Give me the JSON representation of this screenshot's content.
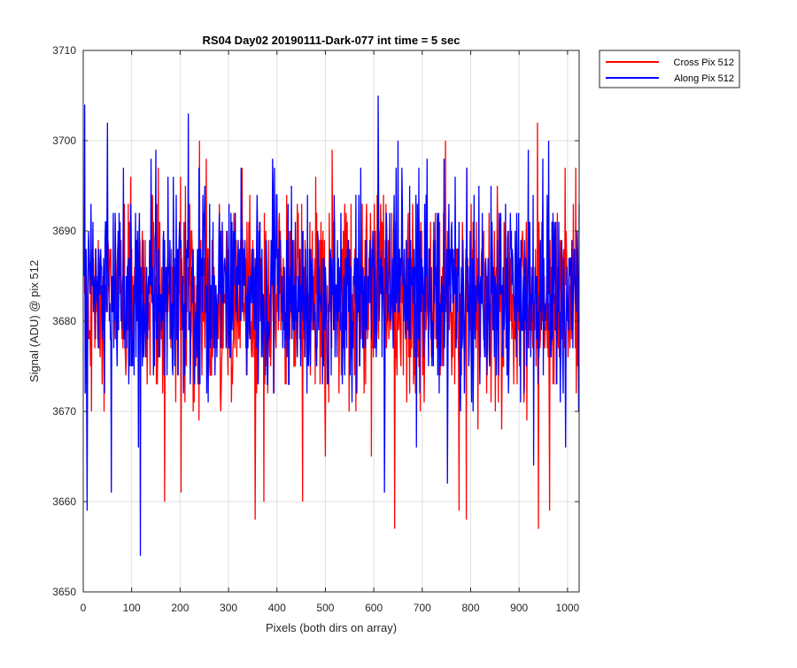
{
  "chart_data": {
    "type": "line",
    "title": "RS04 Day02 20190111-Dark-077 int time = 5 sec",
    "xlabel": "Pixels (both dirs on array)",
    "ylabel": "Signal (ADU) @ pix 512",
    "xlim": [
      0,
      1024
    ],
    "ylim": [
      3650,
      3710
    ],
    "xticks": [
      0,
      100,
      200,
      300,
      400,
      500,
      600,
      700,
      800,
      900,
      1000
    ],
    "yticks": [
      3650,
      3660,
      3670,
      3680,
      3690,
      3700,
      3710
    ],
    "grid": true,
    "legend": "outside-top-right",
    "series": [
      {
        "name": "Cross Pix 512",
        "color": "#ff0000",
        "mean": 3682,
        "spread": 5.5,
        "min": 3657,
        "max": 3702,
        "extremes": [
          [
            155,
            3697
          ],
          [
            168,
            3660
          ],
          [
            202,
            3661
          ],
          [
            240,
            3700
          ],
          [
            254,
            3698
          ],
          [
            355,
            3658
          ],
          [
            373,
            3660
          ],
          [
            442,
            3693
          ],
          [
            643,
            3657
          ],
          [
            776,
            3659
          ],
          [
            791,
            3658
          ],
          [
            855,
            3695
          ],
          [
            938,
            3702
          ],
          [
            940,
            3657
          ],
          [
            963,
            3659
          ],
          [
            995,
            3697
          ]
        ]
      },
      {
        "name": "Along Pix 512",
        "color": "#0000ff",
        "mean": 3683,
        "spread": 5.5,
        "min": 3654,
        "max": 3705,
        "extremes": [
          [
            3,
            3704
          ],
          [
            8,
            3659
          ],
          [
            50,
            3702
          ],
          [
            58,
            3661
          ],
          [
            118,
            3654
          ],
          [
            150,
            3699
          ],
          [
            217,
            3703
          ],
          [
            430,
            3695
          ],
          [
            609,
            3705
          ],
          [
            622,
            3661
          ],
          [
            650,
            3700
          ],
          [
            745,
            3698
          ],
          [
            752,
            3662
          ],
          [
            919,
            3699
          ],
          [
            930,
            3664
          ],
          [
            961,
            3700
          ]
        ]
      }
    ]
  }
}
